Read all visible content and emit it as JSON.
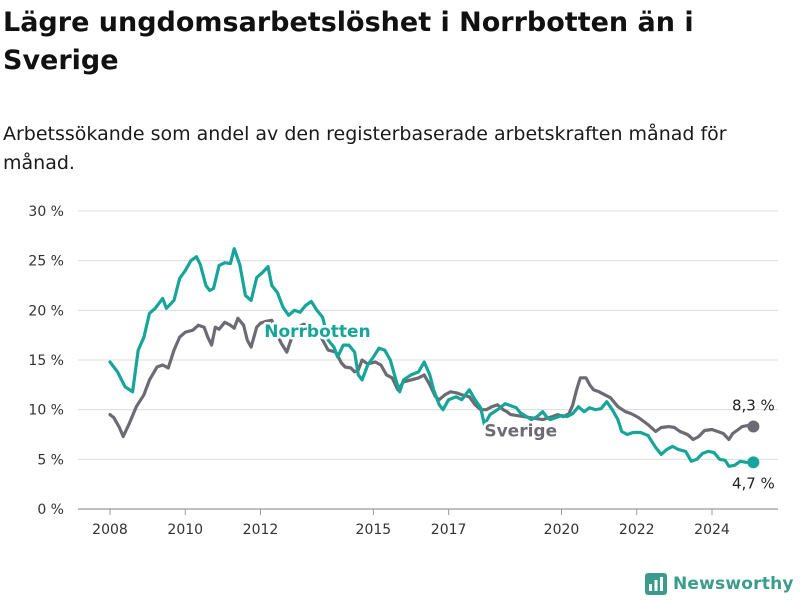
{
  "header": {
    "title": "Lägre ungdomsarbetslöshet i Norrbotten än i Sverige",
    "subtitle": "Arbetssökande som andel av den registerbaserade arbetskraften månad för månad."
  },
  "brand": {
    "name": "Newsworthy",
    "icon": "bar-chart-logo-icon",
    "color": "#3b9c8c"
  },
  "chart_data": {
    "type": "line",
    "title": "Lägre ungdomsarbetslöshet i Norrbotten än i Sverige",
    "subtitle": "Arbetssökande som andel av den registerbaserade arbetskraften månad för månad.",
    "xlabel": "",
    "ylabel": "",
    "ylim": [
      0,
      30
    ],
    "xlim": [
      2007.6,
      2025.5
    ],
    "grid": true,
    "yticks": [
      0,
      5,
      10,
      15,
      20,
      25,
      30
    ],
    "ytick_labels": [
      "0 %",
      "5 %",
      "10 %",
      "15 %",
      "20 %",
      "25 %",
      "30 %"
    ],
    "xticks": [
      2008,
      2010,
      2012,
      2015,
      2017,
      2020,
      2022,
      2024
    ],
    "xtick_labels": [
      "2008",
      "2010",
      "2012",
      "2015",
      "2017",
      "2020",
      "2022",
      "2024"
    ],
    "series": [
      {
        "name": "Norrbotten",
        "color": "#16a598",
        "end_label": "4,7 %",
        "points": [
          [
            2008.0,
            14.8
          ],
          [
            2008.2,
            13.8
          ],
          [
            2008.4,
            12.3
          ],
          [
            2008.6,
            11.8
          ],
          [
            2008.75,
            16.0
          ],
          [
            2008.9,
            17.3
          ],
          [
            2009.05,
            19.7
          ],
          [
            2009.2,
            20.2
          ],
          [
            2009.4,
            21.2
          ],
          [
            2009.5,
            20.2
          ],
          [
            2009.7,
            21.0
          ],
          [
            2009.85,
            23.2
          ],
          [
            2010.0,
            24.0
          ],
          [
            2010.15,
            25.0
          ],
          [
            2010.3,
            25.4
          ],
          [
            2010.4,
            24.6
          ],
          [
            2010.55,
            22.5
          ],
          [
            2010.65,
            22.0
          ],
          [
            2010.75,
            22.2
          ],
          [
            2010.9,
            24.5
          ],
          [
            2011.05,
            24.8
          ],
          [
            2011.2,
            24.7
          ],
          [
            2011.3,
            26.2
          ],
          [
            2011.45,
            24.6
          ],
          [
            2011.6,
            21.5
          ],
          [
            2011.75,
            21.0
          ],
          [
            2011.9,
            23.3
          ],
          [
            2012.05,
            23.8
          ],
          [
            2012.2,
            24.4
          ],
          [
            2012.3,
            22.5
          ],
          [
            2012.45,
            21.8
          ],
          [
            2012.6,
            20.3
          ],
          [
            2012.75,
            19.5
          ],
          [
            2012.9,
            20.0
          ],
          [
            2013.05,
            19.8
          ],
          [
            2013.2,
            20.5
          ],
          [
            2013.35,
            20.9
          ],
          [
            2013.5,
            20.0
          ],
          [
            2013.65,
            19.3
          ],
          [
            2013.8,
            17.0
          ],
          [
            2013.95,
            16.3
          ],
          [
            2014.05,
            15.3
          ],
          [
            2014.2,
            16.5
          ],
          [
            2014.35,
            16.5
          ],
          [
            2014.5,
            15.8
          ],
          [
            2014.6,
            13.5
          ],
          [
            2014.7,
            13.0
          ],
          [
            2014.85,
            14.5
          ],
          [
            2015.0,
            15.3
          ],
          [
            2015.15,
            16.2
          ],
          [
            2015.3,
            16.0
          ],
          [
            2015.45,
            15.0
          ],
          [
            2015.6,
            13.0
          ],
          [
            2015.7,
            11.8
          ],
          [
            2015.8,
            13.0
          ],
          [
            2016.0,
            13.5
          ],
          [
            2016.2,
            13.8
          ],
          [
            2016.35,
            14.8
          ],
          [
            2016.5,
            13.5
          ],
          [
            2016.6,
            12.0
          ],
          [
            2016.75,
            10.5
          ],
          [
            2016.85,
            10.0
          ],
          [
            2017.0,
            11.0
          ],
          [
            2017.2,
            11.3
          ],
          [
            2017.35,
            11.0
          ],
          [
            2017.55,
            12.0
          ],
          [
            2017.7,
            11.0
          ],
          [
            2017.85,
            10.2
          ],
          [
            2017.95,
            8.5
          ],
          [
            2018.1,
            9.5
          ],
          [
            2018.3,
            10.0
          ],
          [
            2018.5,
            10.6
          ],
          [
            2018.65,
            10.4
          ],
          [
            2018.8,
            10.2
          ],
          [
            2018.9,
            9.7
          ],
          [
            2019.2,
            9.0
          ],
          [
            2019.35,
            9.3
          ],
          [
            2019.5,
            9.8
          ],
          [
            2019.6,
            9.3
          ],
          [
            2019.7,
            9.0
          ],
          [
            2020.0,
            9.4
          ],
          [
            2020.15,
            9.3
          ],
          [
            2020.3,
            9.6
          ],
          [
            2020.45,
            10.3
          ],
          [
            2020.6,
            9.8
          ],
          [
            2020.75,
            10.2
          ],
          [
            2020.9,
            10.0
          ],
          [
            2021.05,
            10.1
          ],
          [
            2021.2,
            10.8
          ],
          [
            2021.35,
            10.0
          ],
          [
            2021.5,
            9.0
          ],
          [
            2021.6,
            7.8
          ],
          [
            2021.75,
            7.5
          ],
          [
            2021.9,
            7.7
          ],
          [
            2022.1,
            7.7
          ],
          [
            2022.3,
            7.4
          ],
          [
            2022.5,
            6.2
          ],
          [
            2022.65,
            5.5
          ],
          [
            2022.8,
            6.0
          ],
          [
            2022.95,
            6.3
          ],
          [
            2023.1,
            6.0
          ],
          [
            2023.3,
            5.8
          ],
          [
            2023.45,
            4.8
          ],
          [
            2023.6,
            5.0
          ],
          [
            2023.75,
            5.6
          ],
          [
            2023.9,
            5.8
          ],
          [
            2024.05,
            5.7
          ],
          [
            2024.2,
            5.0
          ],
          [
            2024.35,
            4.9
          ],
          [
            2024.45,
            4.3
          ],
          [
            2024.6,
            4.4
          ],
          [
            2024.75,
            4.8
          ],
          [
            2024.9,
            4.7
          ],
          [
            2025.1,
            4.7
          ]
        ]
      },
      {
        "name": "Sverige",
        "color": "#6c6b74",
        "end_label": "8,3 %",
        "points": [
          [
            2008.0,
            9.5
          ],
          [
            2008.1,
            9.2
          ],
          [
            2008.25,
            8.2
          ],
          [
            2008.35,
            7.3
          ],
          [
            2008.5,
            8.5
          ],
          [
            2008.7,
            10.3
          ],
          [
            2008.9,
            11.5
          ],
          [
            2009.05,
            13.0
          ],
          [
            2009.25,
            14.3
          ],
          [
            2009.4,
            14.5
          ],
          [
            2009.55,
            14.2
          ],
          [
            2009.7,
            16.0
          ],
          [
            2009.85,
            17.3
          ],
          [
            2010.0,
            17.8
          ],
          [
            2010.2,
            18.0
          ],
          [
            2010.35,
            18.5
          ],
          [
            2010.5,
            18.3
          ],
          [
            2010.6,
            17.3
          ],
          [
            2010.7,
            16.5
          ],
          [
            2010.8,
            18.3
          ],
          [
            2010.9,
            18.1
          ],
          [
            2011.05,
            18.8
          ],
          [
            2011.2,
            18.5
          ],
          [
            2011.3,
            18.2
          ],
          [
            2011.4,
            19.2
          ],
          [
            2011.55,
            18.5
          ],
          [
            2011.65,
            17.0
          ],
          [
            2011.75,
            16.3
          ],
          [
            2011.9,
            18.3
          ],
          [
            2012.0,
            18.7
          ],
          [
            2012.15,
            18.9
          ],
          [
            2012.3,
            19.0
          ],
          [
            2012.45,
            17.5
          ],
          [
            2012.55,
            16.7
          ],
          [
            2012.7,
            15.8
          ],
          [
            2012.85,
            17.5
          ],
          [
            2013.0,
            18.3
          ],
          [
            2013.15,
            18.6
          ],
          [
            2013.3,
            18.3
          ],
          [
            2013.5,
            18.3
          ],
          [
            2013.65,
            17.0
          ],
          [
            2013.8,
            16.0
          ],
          [
            2014.0,
            15.8
          ],
          [
            2014.15,
            14.7
          ],
          [
            2014.25,
            14.3
          ],
          [
            2014.4,
            14.2
          ],
          [
            2014.5,
            13.8
          ],
          [
            2014.6,
            14.0
          ],
          [
            2014.7,
            15.0
          ],
          [
            2014.85,
            14.6
          ],
          [
            2015.05,
            14.8
          ],
          [
            2015.2,
            14.5
          ],
          [
            2015.35,
            13.5
          ],
          [
            2015.5,
            13.2
          ],
          [
            2015.65,
            12.0
          ],
          [
            2015.8,
            12.8
          ],
          [
            2016.0,
            13.0
          ],
          [
            2016.2,
            13.2
          ],
          [
            2016.35,
            13.5
          ],
          [
            2016.5,
            12.5
          ],
          [
            2016.65,
            11.3
          ],
          [
            2016.75,
            11.0
          ],
          [
            2016.9,
            11.5
          ],
          [
            2017.05,
            11.8
          ],
          [
            2017.2,
            11.7
          ],
          [
            2017.35,
            11.5
          ],
          [
            2017.55,
            11.3
          ],
          [
            2017.7,
            10.5
          ],
          [
            2017.85,
            10.0
          ],
          [
            2018.0,
            10.0
          ],
          [
            2018.15,
            10.3
          ],
          [
            2018.3,
            10.5
          ],
          [
            2018.45,
            10.0
          ],
          [
            2018.55,
            9.8
          ],
          [
            2018.65,
            9.5
          ],
          [
            2019.5,
            9.0
          ],
          [
            2019.75,
            9.3
          ],
          [
            2019.9,
            9.5
          ],
          [
            2020.05,
            9.3
          ],
          [
            2020.2,
            9.6
          ],
          [
            2020.3,
            10.5
          ],
          [
            2020.4,
            12.0
          ],
          [
            2020.5,
            13.2
          ],
          [
            2020.65,
            13.2
          ],
          [
            2020.75,
            12.5
          ],
          [
            2020.85,
            12.0
          ],
          [
            2021.0,
            11.8
          ],
          [
            2021.15,
            11.5
          ],
          [
            2021.3,
            11.2
          ],
          [
            2021.5,
            10.3
          ],
          [
            2021.7,
            9.8
          ],
          [
            2021.85,
            9.6
          ],
          [
            2022.05,
            9.2
          ],
          [
            2022.3,
            8.5
          ],
          [
            2022.5,
            7.8
          ],
          [
            2022.65,
            8.2
          ],
          [
            2022.85,
            8.3
          ],
          [
            2023.0,
            8.2
          ],
          [
            2023.15,
            7.8
          ],
          [
            2023.35,
            7.5
          ],
          [
            2023.5,
            7.0
          ],
          [
            2023.65,
            7.3
          ],
          [
            2023.8,
            7.9
          ],
          [
            2024.0,
            8.0
          ],
          [
            2024.15,
            7.8
          ],
          [
            2024.3,
            7.6
          ],
          [
            2024.45,
            7.0
          ],
          [
            2024.55,
            7.6
          ],
          [
            2024.7,
            8.0
          ],
          [
            2024.8,
            8.3
          ],
          [
            2024.95,
            8.4
          ],
          [
            2025.1,
            8.3
          ]
        ]
      }
    ]
  }
}
